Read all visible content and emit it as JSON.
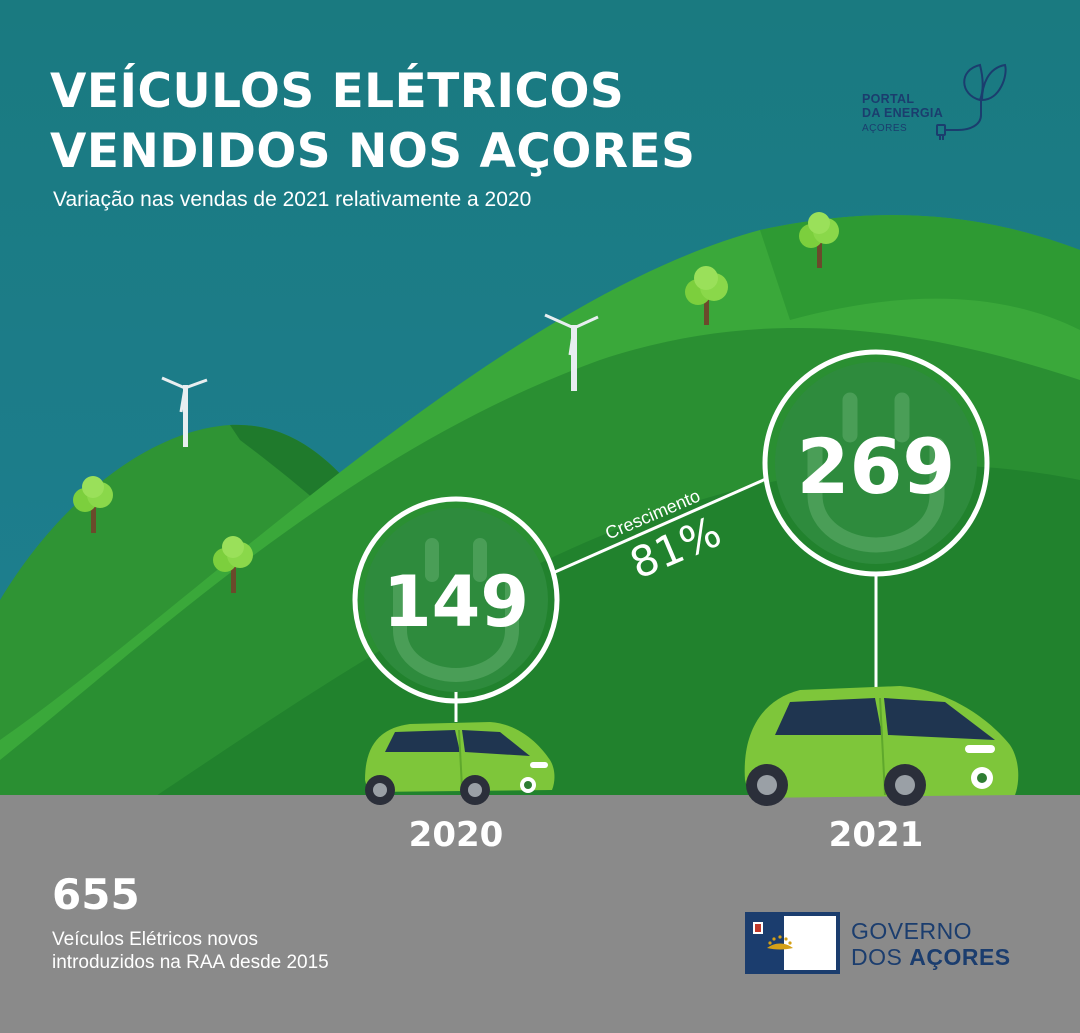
{
  "header": {
    "title_line1": "VEÍCULOS ELÉTRICOS",
    "title_line2": "VENDIDOS NOS AÇORES",
    "subtitle": "Variação nas vendas de 2021 relativamente a 2020"
  },
  "logo": {
    "line1": "PORTAL",
    "line2": "DA ENERGIA",
    "line3": "AÇORES"
  },
  "stats": {
    "value_2020": "149",
    "value_2021": "269",
    "growth_label": "Crescimento",
    "growth_value": "81%",
    "year_2020": "2020",
    "year_2021": "2021"
  },
  "summary": {
    "total": "655",
    "desc_line1": "Veículos Elétricos novos",
    "desc_line2": "introduzidos na RAA desde 2015"
  },
  "government": {
    "line1": "GOVERNO",
    "line2_prefix": "DOS ",
    "line2_bold": "AÇORES"
  },
  "colors": {
    "sky": "#1d7a86",
    "hill_light": "#3aa83a",
    "hill_dark": "#1f7a2c",
    "road": "#8a8a8a",
    "car": "#7ec63a",
    "brand_navy": "#1b3d6e"
  }
}
